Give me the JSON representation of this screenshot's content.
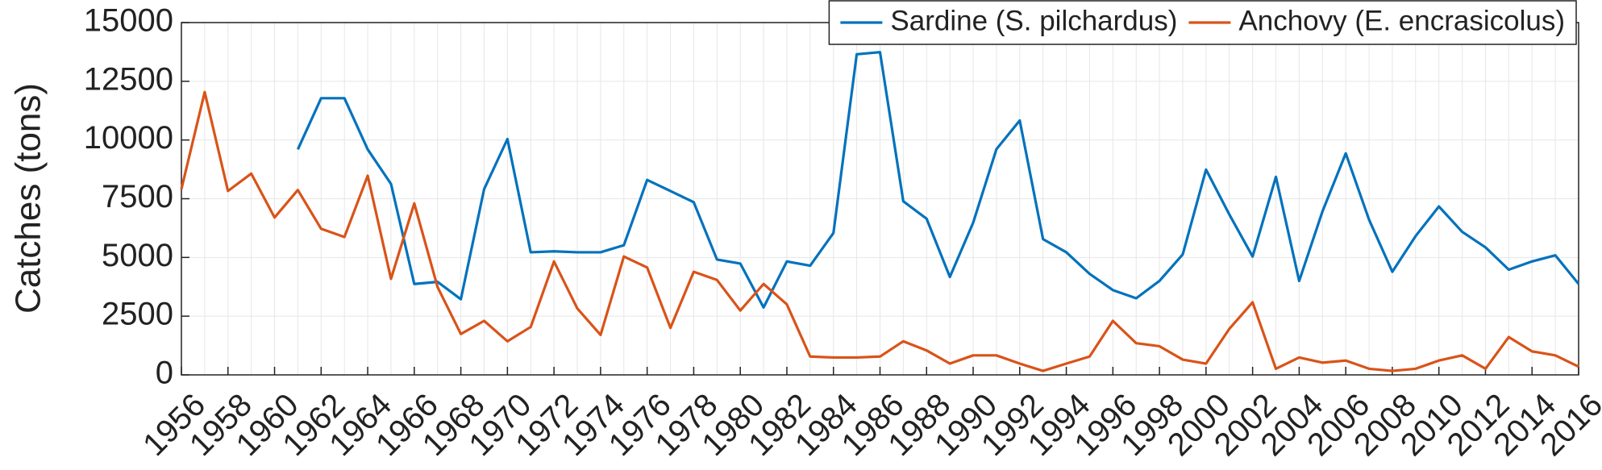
{
  "chart_data": {
    "type": "line",
    "ylabel": "Catches (tons)",
    "x": [
      1956,
      1957,
      1958,
      1959,
      1960,
      1961,
      1962,
      1963,
      1964,
      1965,
      1966,
      1967,
      1968,
      1969,
      1970,
      1971,
      1972,
      1973,
      1974,
      1975,
      1976,
      1977,
      1978,
      1979,
      1980,
      1981,
      1982,
      1983,
      1984,
      1985,
      1986,
      1987,
      1988,
      1989,
      1990,
      1991,
      1992,
      1993,
      1994,
      1995,
      1996,
      1997,
      1998,
      1999,
      2000,
      2001,
      2002,
      2003,
      2004,
      2005,
      2006,
      2007,
      2008,
      2009,
      2010,
      2011,
      2012,
      2013,
      2014,
      2015,
      2016
    ],
    "series": [
      {
        "name": "Sardine (S. pilchardus)",
        "color": "#0072bd",
        "values": [
          null,
          null,
          null,
          null,
          null,
          9600,
          11780,
          11780,
          9600,
          8130,
          3870,
          3960,
          3220,
          7910,
          10040,
          5220,
          5260,
          5220,
          5220,
          5520,
          8300,
          7830,
          7350,
          4910,
          4740,
          2870,
          4830,
          4650,
          6040,
          13650,
          13740,
          7390,
          6650,
          4170,
          6480,
          9610,
          10830,
          5780,
          5220,
          4300,
          3610,
          3260,
          4000,
          5130,
          8740,
          6830,
          5040,
          8430,
          4000,
          6960,
          9430,
          6610,
          4390,
          5910,
          7170,
          6090,
          5430,
          4480,
          4830,
          5090,
          3870
        ]
      },
      {
        "name": "Anchovy (E. encrasicolus)",
        "color": "#d95319",
        "values": [
          7910,
          12040,
          7830,
          8570,
          6700,
          7870,
          6220,
          5870,
          8480,
          4090,
          7300,
          3740,
          1740,
          2300,
          1430,
          2040,
          4830,
          2830,
          1700,
          5040,
          4570,
          2000,
          4390,
          4040,
          2740,
          3870,
          3000,
          780,
          740,
          740,
          780,
          1430,
          1040,
          480,
          830,
          830,
          480,
          170,
          480,
          780,
          2300,
          1350,
          1220,
          650,
          480,
          1960,
          3090,
          260,
          740,
          520,
          610,
          260,
          170,
          260,
          610,
          830,
          260,
          1610,
          1000,
          830,
          350
        ]
      }
    ],
    "xlim": [
      1956,
      2016
    ],
    "xticks": [
      1956,
      1958,
      1960,
      1962,
      1964,
      1966,
      1968,
      1970,
      1972,
      1974,
      1976,
      1978,
      1980,
      1982,
      1984,
      1986,
      1988,
      1990,
      1992,
      1994,
      1996,
      1998,
      2000,
      2002,
      2004,
      2006,
      2008,
      2010,
      2012,
      2014,
      2016
    ],
    "ylim": [
      0,
      15000
    ],
    "yticks": [
      0,
      2500,
      5000,
      7500,
      10000,
      12500,
      15000
    ],
    "grid": true,
    "legend": "upper-right"
  }
}
